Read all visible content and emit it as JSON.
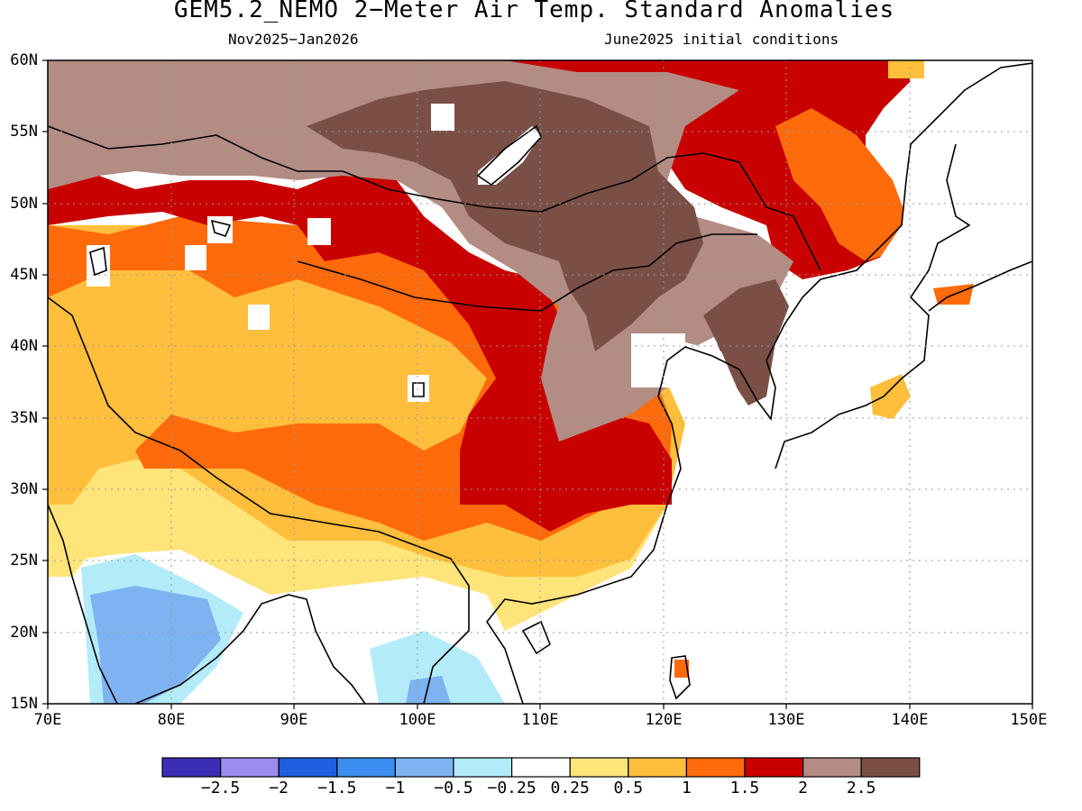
{
  "title": "GEM5.2_NEMO 2−Meter Air Temp. Standard Anomalies",
  "period": "Nov2025−Jan2026",
  "init": "June2025 initial conditions",
  "lat_labels": [
    "60N",
    "55N",
    "50N",
    "45N",
    "40N",
    "35N",
    "30N",
    "25N",
    "20N",
    "15N"
  ],
  "lon_labels": [
    "70E",
    "80E",
    "90E",
    "100E",
    "110E",
    "120E",
    "130E",
    "140E",
    "150E"
  ],
  "colorbar": {
    "colors": [
      "#3b2db5",
      "#9b8cf0",
      "#1f5fe0",
      "#3d8ef2",
      "#7db3f0",
      "#b3ecf8",
      "#ffffff",
      "#ffe47a",
      "#ffbe3c",
      "#ff6a0a",
      "#c80000",
      "#b38c84",
      "#7a5046"
    ],
    "labels": [
      "−2.5",
      "−2",
      "−1.5",
      "−1",
      "−0.5",
      "−0.25",
      "0.25",
      "0.5",
      "1",
      "1.5",
      "2",
      "2.5"
    ]
  },
  "chart_data": {
    "type": "heatmap",
    "title": "GEM5.2_NEMO 2−Meter Air Temp. Standard Anomalies",
    "subtitle": "Nov2025−Jan2026",
    "note": "June2025 initial conditions",
    "lon_range": [
      70,
      150
    ],
    "lat_range": [
      15,
      60
    ],
    "grid": "dotted",
    "levels": [
      -2.5,
      -2,
      -1.5,
      -1,
      -0.5,
      -0.25,
      0.25,
      0.5,
      1,
      1.5,
      2,
      2.5
    ]
  }
}
